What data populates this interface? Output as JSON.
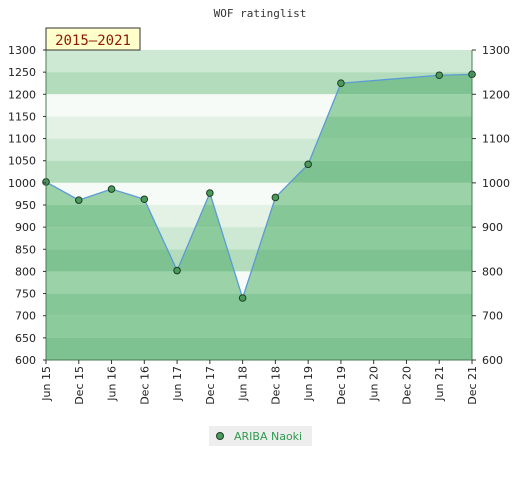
{
  "chart_data": {
    "type": "area",
    "title": "WOF ratinglist",
    "period_label": "2015–2021",
    "x": [
      "Jun 15",
      "Dec 15",
      "Jun 16",
      "Dec 16",
      "Jun 17",
      "Dec 17",
      "Jun 18",
      "Dec 18",
      "Jun 19",
      "Dec 19",
      "Jun 20",
      "Dec 20",
      "Jun 21",
      "Dec 21"
    ],
    "series": [
      {
        "name": "ARIBA Naoki",
        "values": [
          1002,
          961,
          986,
          963,
          802,
          977,
          740,
          967,
          1042,
          1225,
          null,
          null,
          1243,
          1245
        ]
      }
    ],
    "ylim": [
      600,
      1300
    ],
    "yticks": [
      600,
      650,
      700,
      750,
      800,
      850,
      900,
      950,
      1000,
      1050,
      1100,
      1150,
      1200,
      1250,
      1300
    ],
    "yticks_right": [
      600,
      700,
      800,
      900,
      1000,
      1100,
      1200,
      1300
    ],
    "grid": true,
    "legend": "bottom-center",
    "colors": {
      "line": "#5b9bd5",
      "area": "#8cc89c",
      "marker": "#4a9a5a",
      "period_bg": "#ffffcc"
    }
  }
}
